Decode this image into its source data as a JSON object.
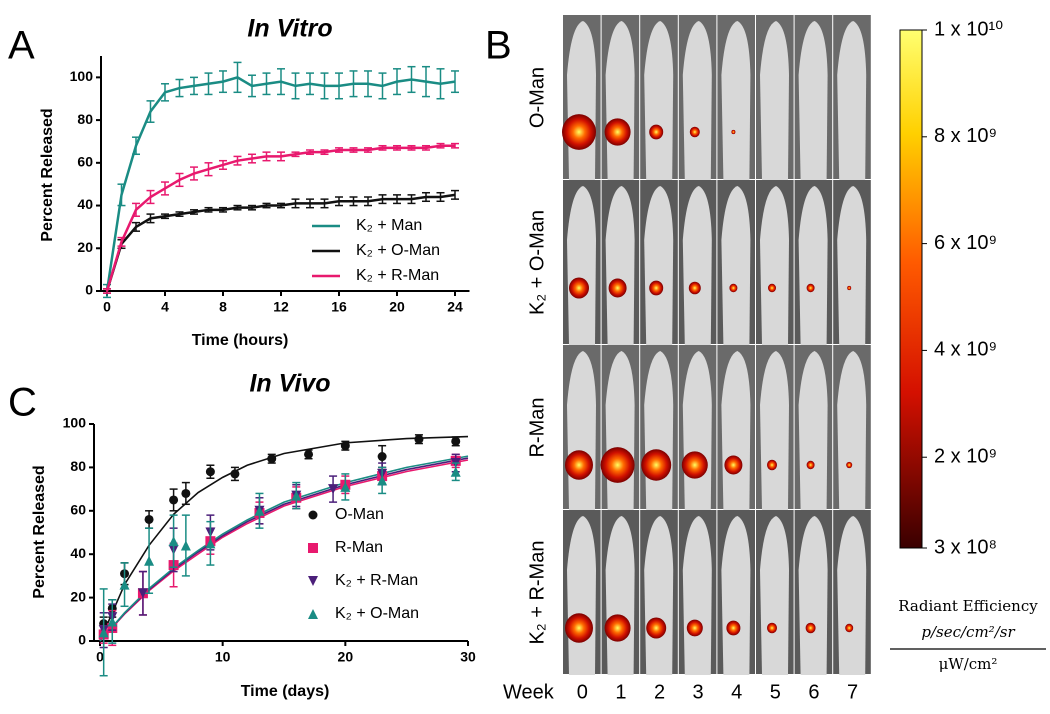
{
  "chart_data": [
    {
      "type": "line",
      "label": "A",
      "title": "In Vitro",
      "x_label": "Time (hours)",
      "y_label": "Percent Released",
      "x": [
        0,
        1,
        2,
        3,
        4,
        5,
        6,
        7,
        8,
        9,
        10,
        11,
        12,
        13,
        14,
        15,
        16,
        17,
        18,
        19,
        20,
        21,
        22,
        23,
        24
      ],
      "series": [
        {
          "name": "K₂ + Man",
          "color": "#1a8c84",
          "values": [
            0,
            45,
            68,
            84,
            93,
            95,
            96,
            97,
            98,
            100,
            96,
            97,
            98,
            96,
            97,
            96,
            96,
            97,
            97,
            96,
            98,
            99,
            98,
            97,
            98
          ],
          "errors": [
            3,
            5,
            4,
            5,
            4,
            4,
            4,
            5,
            5,
            7,
            5,
            5,
            6,
            6,
            5,
            6,
            6,
            6,
            6,
            6,
            6,
            6,
            7,
            7,
            5
          ]
        },
        {
          "name": "K₂ + O-Man",
          "color": "#111111",
          "values": [
            0,
            22,
            30,
            34,
            35,
            36,
            37,
            38,
            38,
            39,
            39,
            40,
            40,
            41,
            41,
            41,
            42,
            42,
            42,
            43,
            43,
            43,
            44,
            44,
            45
          ],
          "errors": [
            1,
            2,
            2,
            2,
            1,
            1,
            1,
            1,
            1,
            1,
            1,
            1,
            1,
            2,
            2,
            2,
            2,
            2,
            2,
            2,
            2,
            2,
            2,
            2,
            2
          ]
        },
        {
          "name": "K₂ + R-Man",
          "color": "#e8196e",
          "values": [
            0,
            23,
            38,
            44,
            48,
            52,
            55,
            57,
            59,
            61,
            62,
            63,
            63,
            64,
            65,
            65,
            66,
            66,
            66,
            67,
            67,
            67,
            67,
            68,
            68
          ],
          "errors": [
            1,
            2,
            3,
            3,
            3,
            3,
            3,
            3,
            2,
            2,
            2,
            2,
            2,
            1,
            1,
            1,
            1,
            1,
            1,
            1,
            1,
            1,
            1,
            1,
            1
          ]
        }
      ],
      "xlim": [
        0,
        25
      ],
      "xticks": [
        0,
        4,
        8,
        12,
        16,
        20,
        24
      ],
      "ylim": [
        0,
        110
      ],
      "yticks": [
        0,
        20,
        40,
        60,
        80,
        100
      ]
    },
    {
      "type": "scatter",
      "label": "C",
      "title": "In Vivo",
      "x_label": "Time (days)",
      "y_label": "Percent Released",
      "series": [
        {
          "name": "O-Man",
          "color": "#111111",
          "marker": "circle",
          "x": [
            0.3,
            1,
            2,
            4,
            6,
            7,
            9,
            11,
            14,
            17,
            20,
            23,
            26,
            29
          ],
          "values": [
            8,
            15,
            31,
            56,
            65,
            68,
            78,
            77,
            84,
            86,
            90,
            85,
            93,
            92
          ],
          "errors": [
            3,
            4,
            5,
            4,
            5,
            5,
            3,
            3,
            2,
            2,
            2,
            5,
            2,
            2
          ]
        },
        {
          "name": "R-Man",
          "color": "#e8196e",
          "marker": "square",
          "x": [
            0.3,
            1,
            3.5,
            6,
            9,
            13,
            16,
            20,
            23,
            29
          ],
          "values": [
            3,
            6,
            22,
            35,
            46,
            59,
            66,
            72,
            76,
            83
          ],
          "errors": [
            4,
            8,
            10,
            10,
            6,
            5,
            5,
            4,
            4,
            3
          ]
        },
        {
          "name": "K₂ + R-Man",
          "color": "#4b1f7a",
          "marker": "triangle-down",
          "x": [
            0.3,
            1,
            3.5,
            6,
            9,
            13,
            16,
            19,
            23,
            29
          ],
          "values": [
            5,
            11,
            22,
            42,
            50,
            60,
            67,
            70,
            77,
            82
          ],
          "errors": [
            8,
            6,
            10,
            10,
            8,
            6,
            5,
            6,
            5,
            4
          ]
        },
        {
          "name": "K₂ + O-Man",
          "color": "#1a8c84",
          "marker": "triangle-up",
          "x": [
            0.3,
            1,
            2,
            4,
            6,
            7,
            9,
            13,
            16,
            20,
            23,
            29
          ],
          "values": [
            4,
            9,
            26,
            37,
            46,
            44,
            45,
            60,
            67,
            71,
            74,
            78
          ],
          "errors": [
            20,
            10,
            10,
            15,
            12,
            14,
            10,
            8,
            6,
            6,
            6,
            4
          ]
        }
      ],
      "fits": [
        {
          "color": "#111111",
          "x": [
            0,
            2,
            4,
            6,
            8,
            10,
            12,
            15,
            20,
            25,
            30
          ],
          "values": [
            0,
            26,
            44.1,
            58.4,
            68.4,
            75.4,
            81,
            86.4,
            91.3,
            93.3,
            94.2
          ]
        },
        {
          "color": "#e8196e",
          "x": [
            0,
            2,
            4,
            6,
            8,
            10,
            12,
            15,
            20,
            25,
            30
          ],
          "values": [
            0,
            12.4,
            23.2,
            32.3,
            40.1,
            47.8,
            54.1,
            62.2,
            71.2,
            78.1,
            83.4
          ]
        },
        {
          "color": "#4b1f7a",
          "x": [
            0,
            2,
            4,
            6,
            8,
            10,
            12,
            15,
            20,
            25,
            30
          ],
          "values": [
            0,
            12.7,
            23.7,
            33,
            41,
            48.5,
            55,
            63,
            72,
            79,
            84.3
          ]
        },
        {
          "color": "#1a8c84",
          "x": [
            0,
            2,
            4,
            6,
            8,
            10,
            12,
            15,
            20,
            25,
            30
          ],
          "values": [
            0,
            13,
            24.2,
            33.6,
            41.7,
            49.3,
            55.8,
            64,
            73,
            80,
            85.2
          ]
        }
      ],
      "xlim": [
        0,
        30
      ],
      "xticks": [
        0,
        10,
        20,
        30
      ],
      "ylim": [
        0,
        100
      ],
      "yticks": [
        0,
        20,
        40,
        60,
        80,
        100
      ]
    }
  ],
  "imaging": {
    "label": "B",
    "row_labels": [
      "O-Man",
      "K₂ + O-Man",
      "R-Man",
      "K₂ + R-Man"
    ],
    "week_title": "Week",
    "weeks": [
      "0",
      "1",
      "2",
      "3",
      "4",
      "5",
      "6",
      "7"
    ],
    "colorbar": {
      "lim": [
        300000000,
        10000000000
      ],
      "ticks": [
        {
          "value": 10000000000,
          "label": "1 x 10¹⁰"
        },
        {
          "value": 8000000000,
          "label": "8 x 10⁹"
        },
        {
          "value": 6000000000,
          "label": "6 x 10⁹"
        },
        {
          "value": 4000000000,
          "label": "4 x 10⁹"
        },
        {
          "value": 2000000000,
          "label": "2 x 10⁹"
        },
        {
          "value": 300000000,
          "label": "3 x 10⁸"
        }
      ],
      "title": "Radiant Efficiency",
      "numerator": "p/sec/cm²/sr",
      "denominator": "μW/cm²"
    }
  }
}
